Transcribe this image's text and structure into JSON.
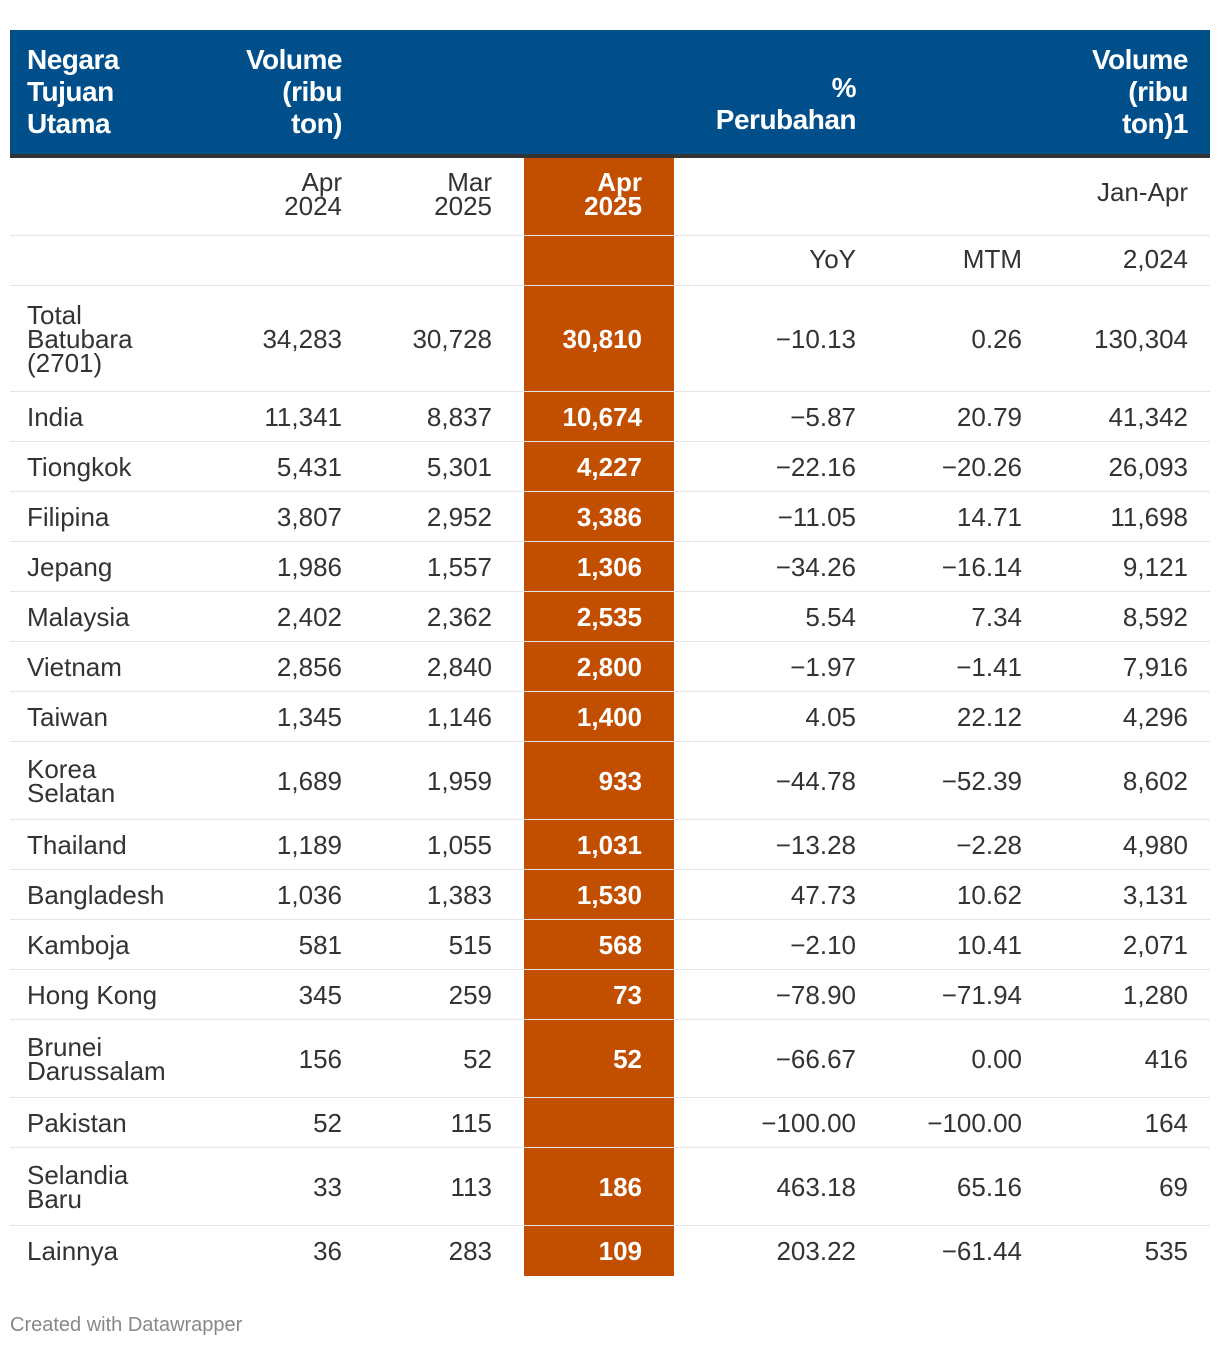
{
  "chart_data": {
    "type": "table",
    "header": {
      "col0": "Negara\nTujuan\nUtama",
      "col1": "Volume\n(ribu\nton)",
      "col4": "%\nPerubahan",
      "col6": "Volume\n(ribu\nton)1"
    },
    "subheader1": [
      "",
      "Apr\n2024",
      "Mar\n2025",
      "Apr\n2025",
      "",
      "",
      "Jan-Apr"
    ],
    "subheader2": [
      "",
      "",
      "",
      "",
      "YoY",
      "MTM",
      "2,024"
    ],
    "rows": [
      [
        "Total\nBatubara\n(2701)",
        "34,283",
        "30,728",
        "30,810",
        "−10.13",
        "0.26",
        "130,304"
      ],
      [
        "India",
        "11,341",
        "8,837",
        "10,674",
        "−5.87",
        "20.79",
        "41,342"
      ],
      [
        "Tiongkok",
        "5,431",
        "5,301",
        "4,227",
        "−22.16",
        "−20.26",
        "26,093"
      ],
      [
        "Filipina",
        "3,807",
        "2,952",
        "3,386",
        "−11.05",
        "14.71",
        "11,698"
      ],
      [
        "Jepang",
        "1,986",
        "1,557",
        "1,306",
        "−34.26",
        "−16.14",
        "9,121"
      ],
      [
        "Malaysia",
        "2,402",
        "2,362",
        "2,535",
        "5.54",
        "7.34",
        "8,592"
      ],
      [
        "Vietnam",
        "2,856",
        "2,840",
        "2,800",
        "−1.97",
        "−1.41",
        "7,916"
      ],
      [
        "Taiwan",
        "1,345",
        "1,146",
        "1,400",
        "4.05",
        "22.12",
        "4,296"
      ],
      [
        "Korea\nSelatan",
        "1,689",
        "1,959",
        "933",
        "−44.78",
        "−52.39",
        "8,602"
      ],
      [
        "Thailand",
        "1,189",
        "1,055",
        "1,031",
        "−13.28",
        "−2.28",
        "4,980"
      ],
      [
        "Bangladesh",
        "1,036",
        "1,383",
        "1,530",
        "47.73",
        "10.62",
        "3,131"
      ],
      [
        "Kamboja",
        "581",
        "515",
        "568",
        "−2.10",
        "10.41",
        "2,071"
      ],
      [
        "Hong Kong",
        "345",
        "259",
        "73",
        "−78.90",
        "−71.94",
        "1,280"
      ],
      [
        "Brunei\nDarussalam",
        "156",
        "52",
        "52",
        "−66.67",
        "0.00",
        "416"
      ],
      [
        "Pakistan",
        "52",
        "115",
        "",
        "−100.00",
        "−100.00",
        "164"
      ],
      [
        "Selandia\nBaru",
        "33",
        "113",
        "186",
        "463.18",
        "65.16",
        "69"
      ],
      [
        "Lainnya",
        "36",
        "283",
        "109",
        "203.22",
        "−61.44",
        "535"
      ]
    ]
  },
  "colors": {
    "header_bg": "#004f8b",
    "highlight": "#c24e00"
  },
  "footer": {
    "credit": "Created with Datawrapper"
  }
}
